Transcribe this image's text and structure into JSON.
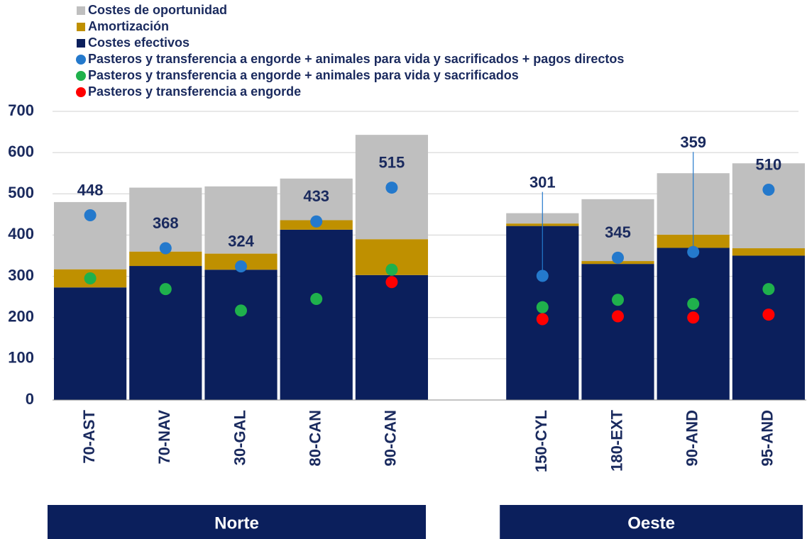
{
  "chart_data": {
    "type": "bar",
    "categories": [
      "70-AST",
      "70-NAV",
      "30-GAL",
      "80-CAN",
      "90-CAN",
      null,
      "150-CYL",
      "180-EXT",
      "90-AND",
      "95-AND"
    ],
    "series": [
      {
        "name": "Costes de oportunidad",
        "type": "bar",
        "color": "#bfbfbf",
        "values": [
          163,
          155,
          163,
          101,
          253,
          null,
          25,
          150,
          149,
          206
        ]
      },
      {
        "name": "Amortización",
        "type": "bar",
        "color": "#bf9000",
        "values": [
          44,
          35,
          39,
          23,
          87,
          null,
          6,
          7,
          32,
          18
        ]
      },
      {
        "name": "Costes efectivos",
        "type": "bar",
        "color": "#0b1f5c",
        "values": [
          273,
          325,
          316,
          413,
          303,
          null,
          422,
          330,
          369,
          350
        ]
      },
      {
        "name": "Pasteros y transferencia a engorde + animales para vida y sacrificados + pagos directos",
        "type": "scatter",
        "color": "#2479cc",
        "labels": true,
        "values": [
          448,
          368,
          324,
          433,
          515,
          null,
          301,
          345,
          359,
          510
        ]
      },
      {
        "name": "Pasteros y transferencia a engorde + animales para vida y sacrificados",
        "type": "scatter",
        "color": "#1fb14c",
        "values": [
          295,
          269,
          217,
          245,
          316,
          null,
          225,
          243,
          233,
          269
        ]
      },
      {
        "name": "Pasteros y transferencia a engorde",
        "type": "scatter",
        "color": "#ff0000",
        "values": [
          null,
          null,
          null,
          null,
          286,
          null,
          196,
          203,
          200,
          207
        ]
      }
    ],
    "groups": [
      {
        "name": "Norte",
        "from": 0,
        "to": 4
      },
      {
        "name": "Oeste",
        "from": 6,
        "to": 9
      }
    ],
    "group_color": "#0b1f5c",
    "ylim": [
      0,
      700
    ],
    "yticks": [
      0,
      100,
      200,
      300,
      400,
      500,
      600,
      700
    ],
    "grid": true
  }
}
